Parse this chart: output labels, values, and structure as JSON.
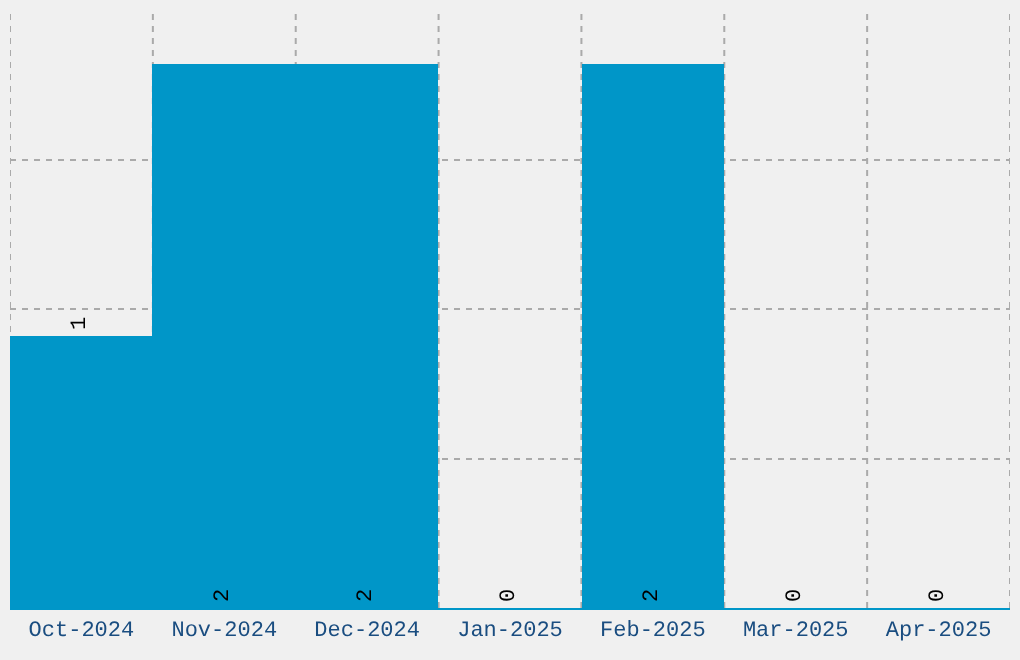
{
  "chart_data": {
    "type": "bar",
    "categories": [
      "Oct-2024",
      "Nov-2024",
      "Dec-2024",
      "Jan-2025",
      "Feb-2025",
      "Mar-2025",
      "Apr-2025"
    ],
    "values": [
      1,
      2,
      2,
      0,
      2,
      0,
      0
    ],
    "color": "#0096c8",
    "data_labels": true,
    "grid": true,
    "tick_labels": "x",
    "ylim": [
      0,
      2.2
    ],
    "yticks": [
      {
        "value": 0.55,
        "label": null
      },
      {
        "value": 1.1,
        "label": null
      },
      {
        "value": 1.65,
        "label": null
      }
    ]
  }
}
